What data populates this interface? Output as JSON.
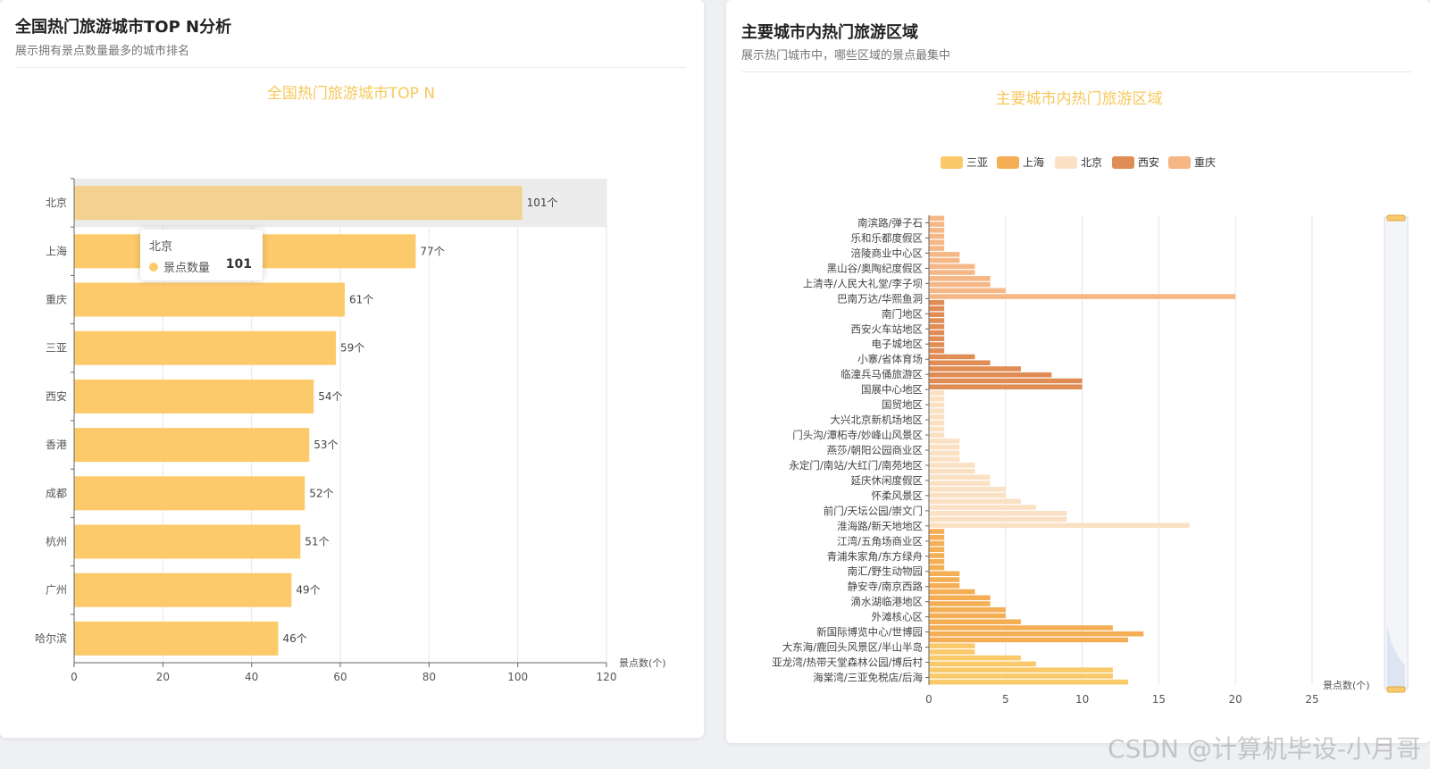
{
  "left_panel": {
    "title": "全国热门旅游城市TOP N分析",
    "subtitle": "展示拥有景点数量最多的城市排名"
  },
  "right_panel": {
    "title": "主要城市内热门旅游区域",
    "subtitle": "展示热门城市中，哪些区域的景点最集中"
  },
  "tooltip": {
    "title": "北京",
    "label": "景点数量",
    "value": "101"
  },
  "watermark": "CSDN @计算机毕设-小月哥",
  "colors": {
    "bar_yellow": "#fcca6a",
    "highlight_bar": "#f2d28e",
    "title_gold": "#f6c95c"
  },
  "chart_data": [
    {
      "type": "bar",
      "orientation": "horizontal",
      "title": "全国热门旅游城市TOP N",
      "categories": [
        "北京",
        "上海",
        "重庆",
        "三亚",
        "西安",
        "香港",
        "成都",
        "杭州",
        "广州",
        "哈尔滨"
      ],
      "values": [
        101,
        77,
        61,
        59,
        54,
        53,
        52,
        51,
        49,
        46
      ],
      "value_suffix": "个",
      "xlabel": "景点数(个)",
      "xlim": [
        0,
        120
      ],
      "xticks": [
        "0",
        "20",
        "40",
        "60",
        "80",
        "100",
        "120"
      ],
      "highlighted": "北京"
    },
    {
      "type": "bar",
      "orientation": "horizontal",
      "title": "主要城市内热门旅游区域",
      "xlabel": "景点数(个)",
      "xlim": [
        0,
        25
      ],
      "xticks": [
        "0",
        "5",
        "10",
        "15",
        "20",
        "25"
      ],
      "legend": [
        {
          "name": "三亚",
          "color": "#f9c96a"
        },
        {
          "name": "上海",
          "color": "#f5ae53"
        },
        {
          "name": "北京",
          "color": "#fbe1c4"
        },
        {
          "name": "西安",
          "color": "#e08c55"
        },
        {
          "name": "重庆",
          "color": "#f6b786"
        }
      ],
      "visible_labels": [
        "南滨路/弹子石",
        "乐和乐都度假区",
        "涪陵商业中心区",
        "黑山谷/奥陶纪度假区",
        "上清寺/人民大礼堂/李子坝",
        "巴南万达/华熙鱼洞",
        "南门地区",
        "西安火车站地区",
        "电子城地区",
        "小寨/省体育场",
        "临潼兵马俑旅游区",
        "国展中心地区",
        "国贸地区",
        "大兴北京新机场地区",
        "门头沟/潭柘寺/妙峰山风景区",
        "燕莎/朝阳公园商业区",
        "永定门/南站/大红门/南苑地区",
        "延庆休闲度假区",
        "怀柔风景区",
        "前门/天坛公园/崇文门",
        "淮海路/新天地地区",
        "江湾/五角场商业区",
        "青浦朱家角/东方绿舟",
        "南汇/野生动物园",
        "静安寺/南京西路",
        "滴水湖临港地区",
        "外滩核心区",
        "新国际博览中心/世博园",
        "大东海/鹿回头风景区/半山半岛",
        "亚龙湾/热带天堂森林公园/博后村",
        "海棠湾/三亚免税店/后海"
      ],
      "series": [
        {
          "name": "重庆",
          "values": [
            1,
            1,
            1,
            1,
            1,
            1,
            2,
            2,
            3,
            3,
            4,
            4,
            5,
            20
          ]
        },
        {
          "name": "西安",
          "values": [
            1,
            1,
            1,
            1,
            1,
            1,
            1,
            1,
            1,
            3,
            4,
            6,
            8,
            10,
            10
          ]
        },
        {
          "name": "北京",
          "values": [
            1,
            1,
            1,
            1,
            1,
            1,
            1,
            1,
            2,
            2,
            2,
            2,
            3,
            3,
            4,
            4,
            5,
            5,
            6,
            7,
            9,
            9,
            17
          ]
        },
        {
          "name": "上海",
          "values": [
            1,
            1,
            1,
            1,
            1,
            1,
            1,
            2,
            2,
            2,
            3,
            4,
            4,
            5,
            5,
            6,
            12,
            14,
            13
          ]
        },
        {
          "name": "三亚",
          "values": [
            3,
            3,
            6,
            7,
            12,
            12,
            13
          ]
        }
      ]
    }
  ]
}
